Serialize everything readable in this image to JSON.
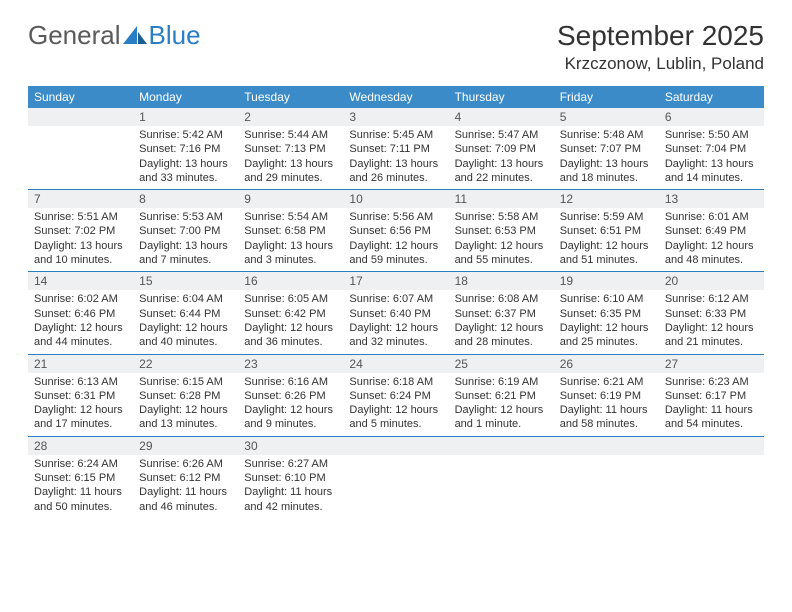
{
  "logo": {
    "text1": "General",
    "text2": "Blue",
    "color1": "#5a5a5a",
    "color2": "#2a7fc4"
  },
  "title": "September 2025",
  "location": "Krzczonow, Lublin, Poland",
  "colors": {
    "header_bg": "#3b8bc8",
    "header_fg": "#ffffff",
    "daybar_bg": "#eef0f2",
    "week_border": "#2a7fc4",
    "text": "#333333"
  },
  "day_names": [
    "Sunday",
    "Monday",
    "Tuesday",
    "Wednesday",
    "Thursday",
    "Friday",
    "Saturday"
  ],
  "weeks": [
    [
      {
        "n": "",
        "sr": "",
        "ss": "",
        "dl": ""
      },
      {
        "n": "1",
        "sr": "Sunrise: 5:42 AM",
        "ss": "Sunset: 7:16 PM",
        "dl": "Daylight: 13 hours and 33 minutes."
      },
      {
        "n": "2",
        "sr": "Sunrise: 5:44 AM",
        "ss": "Sunset: 7:13 PM",
        "dl": "Daylight: 13 hours and 29 minutes."
      },
      {
        "n": "3",
        "sr": "Sunrise: 5:45 AM",
        "ss": "Sunset: 7:11 PM",
        "dl": "Daylight: 13 hours and 26 minutes."
      },
      {
        "n": "4",
        "sr": "Sunrise: 5:47 AM",
        "ss": "Sunset: 7:09 PM",
        "dl": "Daylight: 13 hours and 22 minutes."
      },
      {
        "n": "5",
        "sr": "Sunrise: 5:48 AM",
        "ss": "Sunset: 7:07 PM",
        "dl": "Daylight: 13 hours and 18 minutes."
      },
      {
        "n": "6",
        "sr": "Sunrise: 5:50 AM",
        "ss": "Sunset: 7:04 PM",
        "dl": "Daylight: 13 hours and 14 minutes."
      }
    ],
    [
      {
        "n": "7",
        "sr": "Sunrise: 5:51 AM",
        "ss": "Sunset: 7:02 PM",
        "dl": "Daylight: 13 hours and 10 minutes."
      },
      {
        "n": "8",
        "sr": "Sunrise: 5:53 AM",
        "ss": "Sunset: 7:00 PM",
        "dl": "Daylight: 13 hours and 7 minutes."
      },
      {
        "n": "9",
        "sr": "Sunrise: 5:54 AM",
        "ss": "Sunset: 6:58 PM",
        "dl": "Daylight: 13 hours and 3 minutes."
      },
      {
        "n": "10",
        "sr": "Sunrise: 5:56 AM",
        "ss": "Sunset: 6:56 PM",
        "dl": "Daylight: 12 hours and 59 minutes."
      },
      {
        "n": "11",
        "sr": "Sunrise: 5:58 AM",
        "ss": "Sunset: 6:53 PM",
        "dl": "Daylight: 12 hours and 55 minutes."
      },
      {
        "n": "12",
        "sr": "Sunrise: 5:59 AM",
        "ss": "Sunset: 6:51 PM",
        "dl": "Daylight: 12 hours and 51 minutes."
      },
      {
        "n": "13",
        "sr": "Sunrise: 6:01 AM",
        "ss": "Sunset: 6:49 PM",
        "dl": "Daylight: 12 hours and 48 minutes."
      }
    ],
    [
      {
        "n": "14",
        "sr": "Sunrise: 6:02 AM",
        "ss": "Sunset: 6:46 PM",
        "dl": "Daylight: 12 hours and 44 minutes."
      },
      {
        "n": "15",
        "sr": "Sunrise: 6:04 AM",
        "ss": "Sunset: 6:44 PM",
        "dl": "Daylight: 12 hours and 40 minutes."
      },
      {
        "n": "16",
        "sr": "Sunrise: 6:05 AM",
        "ss": "Sunset: 6:42 PM",
        "dl": "Daylight: 12 hours and 36 minutes."
      },
      {
        "n": "17",
        "sr": "Sunrise: 6:07 AM",
        "ss": "Sunset: 6:40 PM",
        "dl": "Daylight: 12 hours and 32 minutes."
      },
      {
        "n": "18",
        "sr": "Sunrise: 6:08 AM",
        "ss": "Sunset: 6:37 PM",
        "dl": "Daylight: 12 hours and 28 minutes."
      },
      {
        "n": "19",
        "sr": "Sunrise: 6:10 AM",
        "ss": "Sunset: 6:35 PM",
        "dl": "Daylight: 12 hours and 25 minutes."
      },
      {
        "n": "20",
        "sr": "Sunrise: 6:12 AM",
        "ss": "Sunset: 6:33 PM",
        "dl": "Daylight: 12 hours and 21 minutes."
      }
    ],
    [
      {
        "n": "21",
        "sr": "Sunrise: 6:13 AM",
        "ss": "Sunset: 6:31 PM",
        "dl": "Daylight: 12 hours and 17 minutes."
      },
      {
        "n": "22",
        "sr": "Sunrise: 6:15 AM",
        "ss": "Sunset: 6:28 PM",
        "dl": "Daylight: 12 hours and 13 minutes."
      },
      {
        "n": "23",
        "sr": "Sunrise: 6:16 AM",
        "ss": "Sunset: 6:26 PM",
        "dl": "Daylight: 12 hours and 9 minutes."
      },
      {
        "n": "24",
        "sr": "Sunrise: 6:18 AM",
        "ss": "Sunset: 6:24 PM",
        "dl": "Daylight: 12 hours and 5 minutes."
      },
      {
        "n": "25",
        "sr": "Sunrise: 6:19 AM",
        "ss": "Sunset: 6:21 PM",
        "dl": "Daylight: 12 hours and 1 minute."
      },
      {
        "n": "26",
        "sr": "Sunrise: 6:21 AM",
        "ss": "Sunset: 6:19 PM",
        "dl": "Daylight: 11 hours and 58 minutes."
      },
      {
        "n": "27",
        "sr": "Sunrise: 6:23 AM",
        "ss": "Sunset: 6:17 PM",
        "dl": "Daylight: 11 hours and 54 minutes."
      }
    ],
    [
      {
        "n": "28",
        "sr": "Sunrise: 6:24 AM",
        "ss": "Sunset: 6:15 PM",
        "dl": "Daylight: 11 hours and 50 minutes."
      },
      {
        "n": "29",
        "sr": "Sunrise: 6:26 AM",
        "ss": "Sunset: 6:12 PM",
        "dl": "Daylight: 11 hours and 46 minutes."
      },
      {
        "n": "30",
        "sr": "Sunrise: 6:27 AM",
        "ss": "Sunset: 6:10 PM",
        "dl": "Daylight: 11 hours and 42 minutes."
      },
      {
        "n": "",
        "sr": "",
        "ss": "",
        "dl": ""
      },
      {
        "n": "",
        "sr": "",
        "ss": "",
        "dl": ""
      },
      {
        "n": "",
        "sr": "",
        "ss": "",
        "dl": ""
      },
      {
        "n": "",
        "sr": "",
        "ss": "",
        "dl": ""
      }
    ]
  ]
}
